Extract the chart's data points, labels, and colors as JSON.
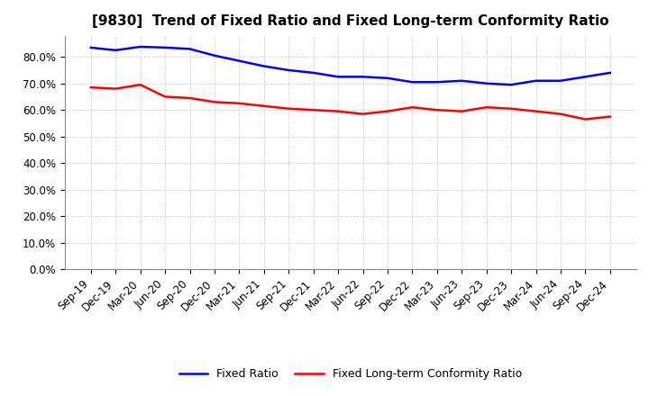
{
  "title": "[9830]  Trend of Fixed Ratio and Fixed Long-term Conformity Ratio",
  "x_labels": [
    "Sep-19",
    "Dec-19",
    "Mar-20",
    "Jun-20",
    "Sep-20",
    "Dec-20",
    "Mar-21",
    "Jun-21",
    "Sep-21",
    "Dec-21",
    "Mar-22",
    "Jun-22",
    "Sep-22",
    "Dec-22",
    "Mar-23",
    "Jun-23",
    "Sep-23",
    "Dec-23",
    "Mar-24",
    "Jun-24",
    "Sep-24",
    "Dec-24"
  ],
  "fixed_ratio": [
    83.5,
    82.5,
    83.8,
    83.5,
    83.0,
    80.5,
    78.5,
    76.5,
    75.0,
    74.0,
    72.5,
    72.5,
    72.0,
    70.5,
    70.5,
    71.0,
    70.0,
    69.5,
    71.0,
    71.0,
    72.5,
    74.0
  ],
  "fixed_lt_ratio": [
    68.5,
    68.0,
    69.5,
    65.0,
    64.5,
    63.0,
    62.5,
    61.5,
    60.5,
    60.0,
    59.5,
    58.5,
    59.5,
    61.0,
    60.0,
    59.5,
    61.0,
    60.5,
    59.5,
    58.5,
    56.5,
    57.5
  ],
  "blue_color": "#0000ff",
  "red_color": "#ff0000",
  "bg_color": "#ffffff",
  "grid_color": "#bbbbbb",
  "ylim": [
    0,
    88
  ],
  "yticks": [
    0,
    10,
    20,
    30,
    40,
    50,
    60,
    70,
    80
  ],
  "legend_fixed_ratio": "Fixed Ratio",
  "legend_fixed_lt": "Fixed Long-term Conformity Ratio"
}
